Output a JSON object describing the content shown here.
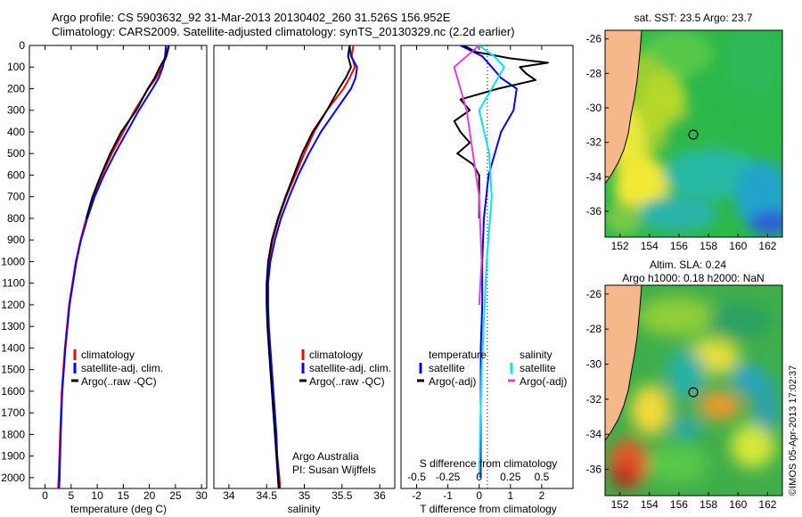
{
  "header": {
    "line1": "Argo profile: CS 5903632_92 31-Mar-2013 20130402_260 31.526S 156.952E",
    "line2": "Climatology: CARS2009. Satellite-adjusted climatology: synTS_20130329.nc (2.2d earlier)"
  },
  "colors": {
    "climatology": "#ff0000",
    "satellite": "#0000ff",
    "argo": "#000000",
    "sat_s": "#00e5ee",
    "argo_s": "#e040e0",
    "land": "#f5b88a"
  },
  "panel_temp": {
    "xlabel": "temperature (deg C)",
    "legend": [
      "climatology",
      "satellite-adj. clim.",
      "Argo(..raw -QC)"
    ]
  },
  "panel_sal": {
    "xlabel": "salinity",
    "legend": [
      "climatology",
      "satellite-adj. clim.",
      "Argo(..raw -QC)"
    ],
    "annotation1": "Argo Australia",
    "annotation2": "PI: Susan Wijffels"
  },
  "panel_diff": {
    "xlabel": "T difference from climatology",
    "s_title": "S difference from climatology",
    "legend_title_t": "temperature",
    "legend_title_s": "salinity",
    "legend_t": [
      "satellite",
      "Argo(-adj)"
    ],
    "legend_s": [
      "satellite",
      "Argo(-adj)"
    ]
  },
  "map_sst": {
    "title": "sat. SST: 23.5 Argo: 23.7"
  },
  "map_sla": {
    "title1": "Altim. SLA: 0.24",
    "title2": "Argo h1000: 0.18 h2000: NaN"
  },
  "footer": {
    "stamp": "©IMOS 05-Apr-2013 17:02:37"
  },
  "chart_data": [
    {
      "type": "line",
      "panel": "temperature",
      "xlabel": "temperature (deg C)",
      "xlim": [
        -3,
        31
      ],
      "ylim": [
        2050,
        0
      ],
      "xticks": [
        0,
        5,
        10,
        15,
        20,
        25,
        30
      ],
      "yticks": [
        0,
        100,
        200,
        300,
        400,
        500,
        600,
        700,
        800,
        900,
        1000,
        1100,
        1200,
        1300,
        1400,
        1500,
        1600,
        1700,
        1800,
        1900,
        2000
      ],
      "depth": [
        0,
        50,
        100,
        150,
        200,
        300,
        400,
        500,
        600,
        700,
        800,
        900,
        1000,
        1200,
        1400,
        1600,
        1800,
        2000,
        2050
      ],
      "series": [
        {
          "name": "climatology",
          "color": "#ff0000",
          "x": [
            23.8,
            23.3,
            22.4,
            21.3,
            19.8,
            17.2,
            15.0,
            12.8,
            10.9,
            9.2,
            7.9,
            6.8,
            5.9,
            4.6,
            3.8,
            3.2,
            2.9,
            2.6,
            2.5
          ]
        },
        {
          "name": "satellite-adj. clim.",
          "color": "#0000ff",
          "x": [
            23.2,
            23.0,
            22.6,
            21.8,
            20.6,
            18.0,
            15.7,
            13.4,
            11.3,
            9.5,
            8.1,
            6.9,
            6.0,
            4.7,
            3.9,
            3.3,
            3.0,
            2.8,
            2.7
          ]
        },
        {
          "name": "Argo(..raw -QC)",
          "color": "#000000",
          "x": [
            23.7,
            23.2,
            22.0,
            21.0,
            19.7,
            17.5,
            14.6,
            12.5,
            10.7,
            9.1,
            7.9,
            null,
            null,
            null,
            null,
            null,
            null,
            null,
            null
          ]
        }
      ]
    },
    {
      "type": "line",
      "panel": "salinity",
      "xlabel": "salinity",
      "xlim": [
        33.8,
        36.2
      ],
      "ylim": [
        2050,
        0
      ],
      "xticks": [
        34,
        34.5,
        35,
        35.5,
        36
      ],
      "depth": [
        0,
        50,
        100,
        150,
        200,
        300,
        400,
        500,
        600,
        700,
        800,
        900,
        1000,
        1100,
        1200,
        1300,
        1400,
        1500,
        1600,
        1700,
        1800,
        1900,
        2000,
        2050
      ],
      "series": [
        {
          "name": "climatology",
          "color": "#ff0000",
          "x": [
            35.65,
            35.63,
            35.67,
            35.6,
            35.52,
            35.3,
            35.13,
            35.0,
            34.88,
            34.76,
            34.66,
            34.58,
            34.53,
            34.51,
            34.51,
            34.52,
            34.54,
            34.56,
            34.58,
            34.6,
            34.62,
            34.64,
            34.67,
            34.68
          ]
        },
        {
          "name": "satellite-adj. clim.",
          "color": "#0000ff",
          "x": [
            35.6,
            35.62,
            35.7,
            35.68,
            35.62,
            35.42,
            35.22,
            35.06,
            34.92,
            34.8,
            34.69,
            34.61,
            34.55,
            34.52,
            34.52,
            34.53,
            34.55,
            34.57,
            34.59,
            34.61,
            34.63,
            34.64,
            34.66,
            34.67
          ]
        },
        {
          "name": "Argo(..raw -QC)",
          "color": "#000000",
          "x": [
            35.6,
            35.58,
            35.62,
            35.55,
            35.46,
            35.3,
            35.11,
            34.97,
            34.86,
            34.75,
            34.65,
            34.57,
            34.52,
            34.5,
            34.5,
            34.51,
            34.53,
            34.55,
            34.57,
            34.59,
            34.61,
            34.63,
            34.65,
            34.66
          ]
        }
      ]
    },
    {
      "type": "line",
      "panel": "difference",
      "xlabel": "T difference from climatology",
      "s_xlabel": "S difference from climatology",
      "xlim": [
        -2.5,
        3
      ],
      "ylim": [
        2050,
        0
      ],
      "xticks": [
        -2,
        -1,
        0,
        1,
        2
      ],
      "s_xticks": [
        -0.5,
        -0.25,
        0,
        0.25,
        0.5
      ],
      "series": [
        {
          "name": "temperature satellite",
          "color": "#0000ff",
          "depth": [
            0,
            50,
            100,
            150,
            200,
            300,
            400,
            600,
            800,
            1000,
            1200,
            1400,
            1600,
            1800,
            2000
          ],
          "x": [
            -0.6,
            0.1,
            0.4,
            0.7,
            1.2,
            1.1,
            0.7,
            0.3,
            0.15,
            0.1,
            0.1,
            0.05,
            0.05,
            0.05,
            0.05
          ]
        },
        {
          "name": "temperature Argo(-adj)",
          "color": "#000000",
          "depth": [
            0,
            30,
            60,
            80,
            100,
            130,
            160,
            200,
            250,
            300,
            350,
            400,
            450,
            500,
            550,
            600,
            700,
            800
          ],
          "x": [
            -0.5,
            -0.1,
            1.0,
            2.2,
            1.3,
            1.5,
            1.8,
            0.6,
            -0.6,
            -0.3,
            -0.8,
            -0.6,
            -0.3,
            -0.7,
            -0.2,
            0.0,
            0.0,
            0.0
          ]
        },
        {
          "name": "salinity satellite",
          "color": "#00e5ee",
          "depth": [
            0,
            50,
            100,
            200,
            300,
            500,
            700,
            1000,
            1500,
            2000
          ],
          "x": [
            0.0,
            0.12,
            0.2,
            0.1,
            0.0,
            0.08,
            0.1,
            0.06,
            0.02,
            0.0
          ]
        },
        {
          "name": "salinity Argo(-adj)",
          "color": "#e040e0",
          "depth": [
            0,
            50,
            100,
            200,
            300,
            500,
            700,
            1000,
            1200
          ],
          "x": [
            0.0,
            -0.1,
            -0.2,
            -0.15,
            -0.1,
            -0.05,
            0.0,
            0.02,
            0.0
          ]
        }
      ]
    },
    {
      "type": "heatmap",
      "panel": "sat. SST map",
      "xlim": [
        151,
        163
      ],
      "ylim": [
        -37.5,
        -25.5
      ],
      "xticks": [
        152,
        154,
        156,
        158,
        160,
        162
      ],
      "yticks": [
        -26,
        -28,
        -30,
        -32,
        -34,
        -36
      ],
      "float_position": [
        156.952,
        -31.526
      ]
    },
    {
      "type": "heatmap",
      "panel": "altimeter SLA map",
      "xlim": [
        151,
        163
      ],
      "ylim": [
        -37.5,
        -25.5
      ],
      "xticks": [
        152,
        154,
        156,
        158,
        160,
        162
      ],
      "yticks": [
        -26,
        -28,
        -30,
        -32,
        -34,
        -36
      ],
      "float_position": [
        156.952,
        -31.526
      ]
    }
  ]
}
